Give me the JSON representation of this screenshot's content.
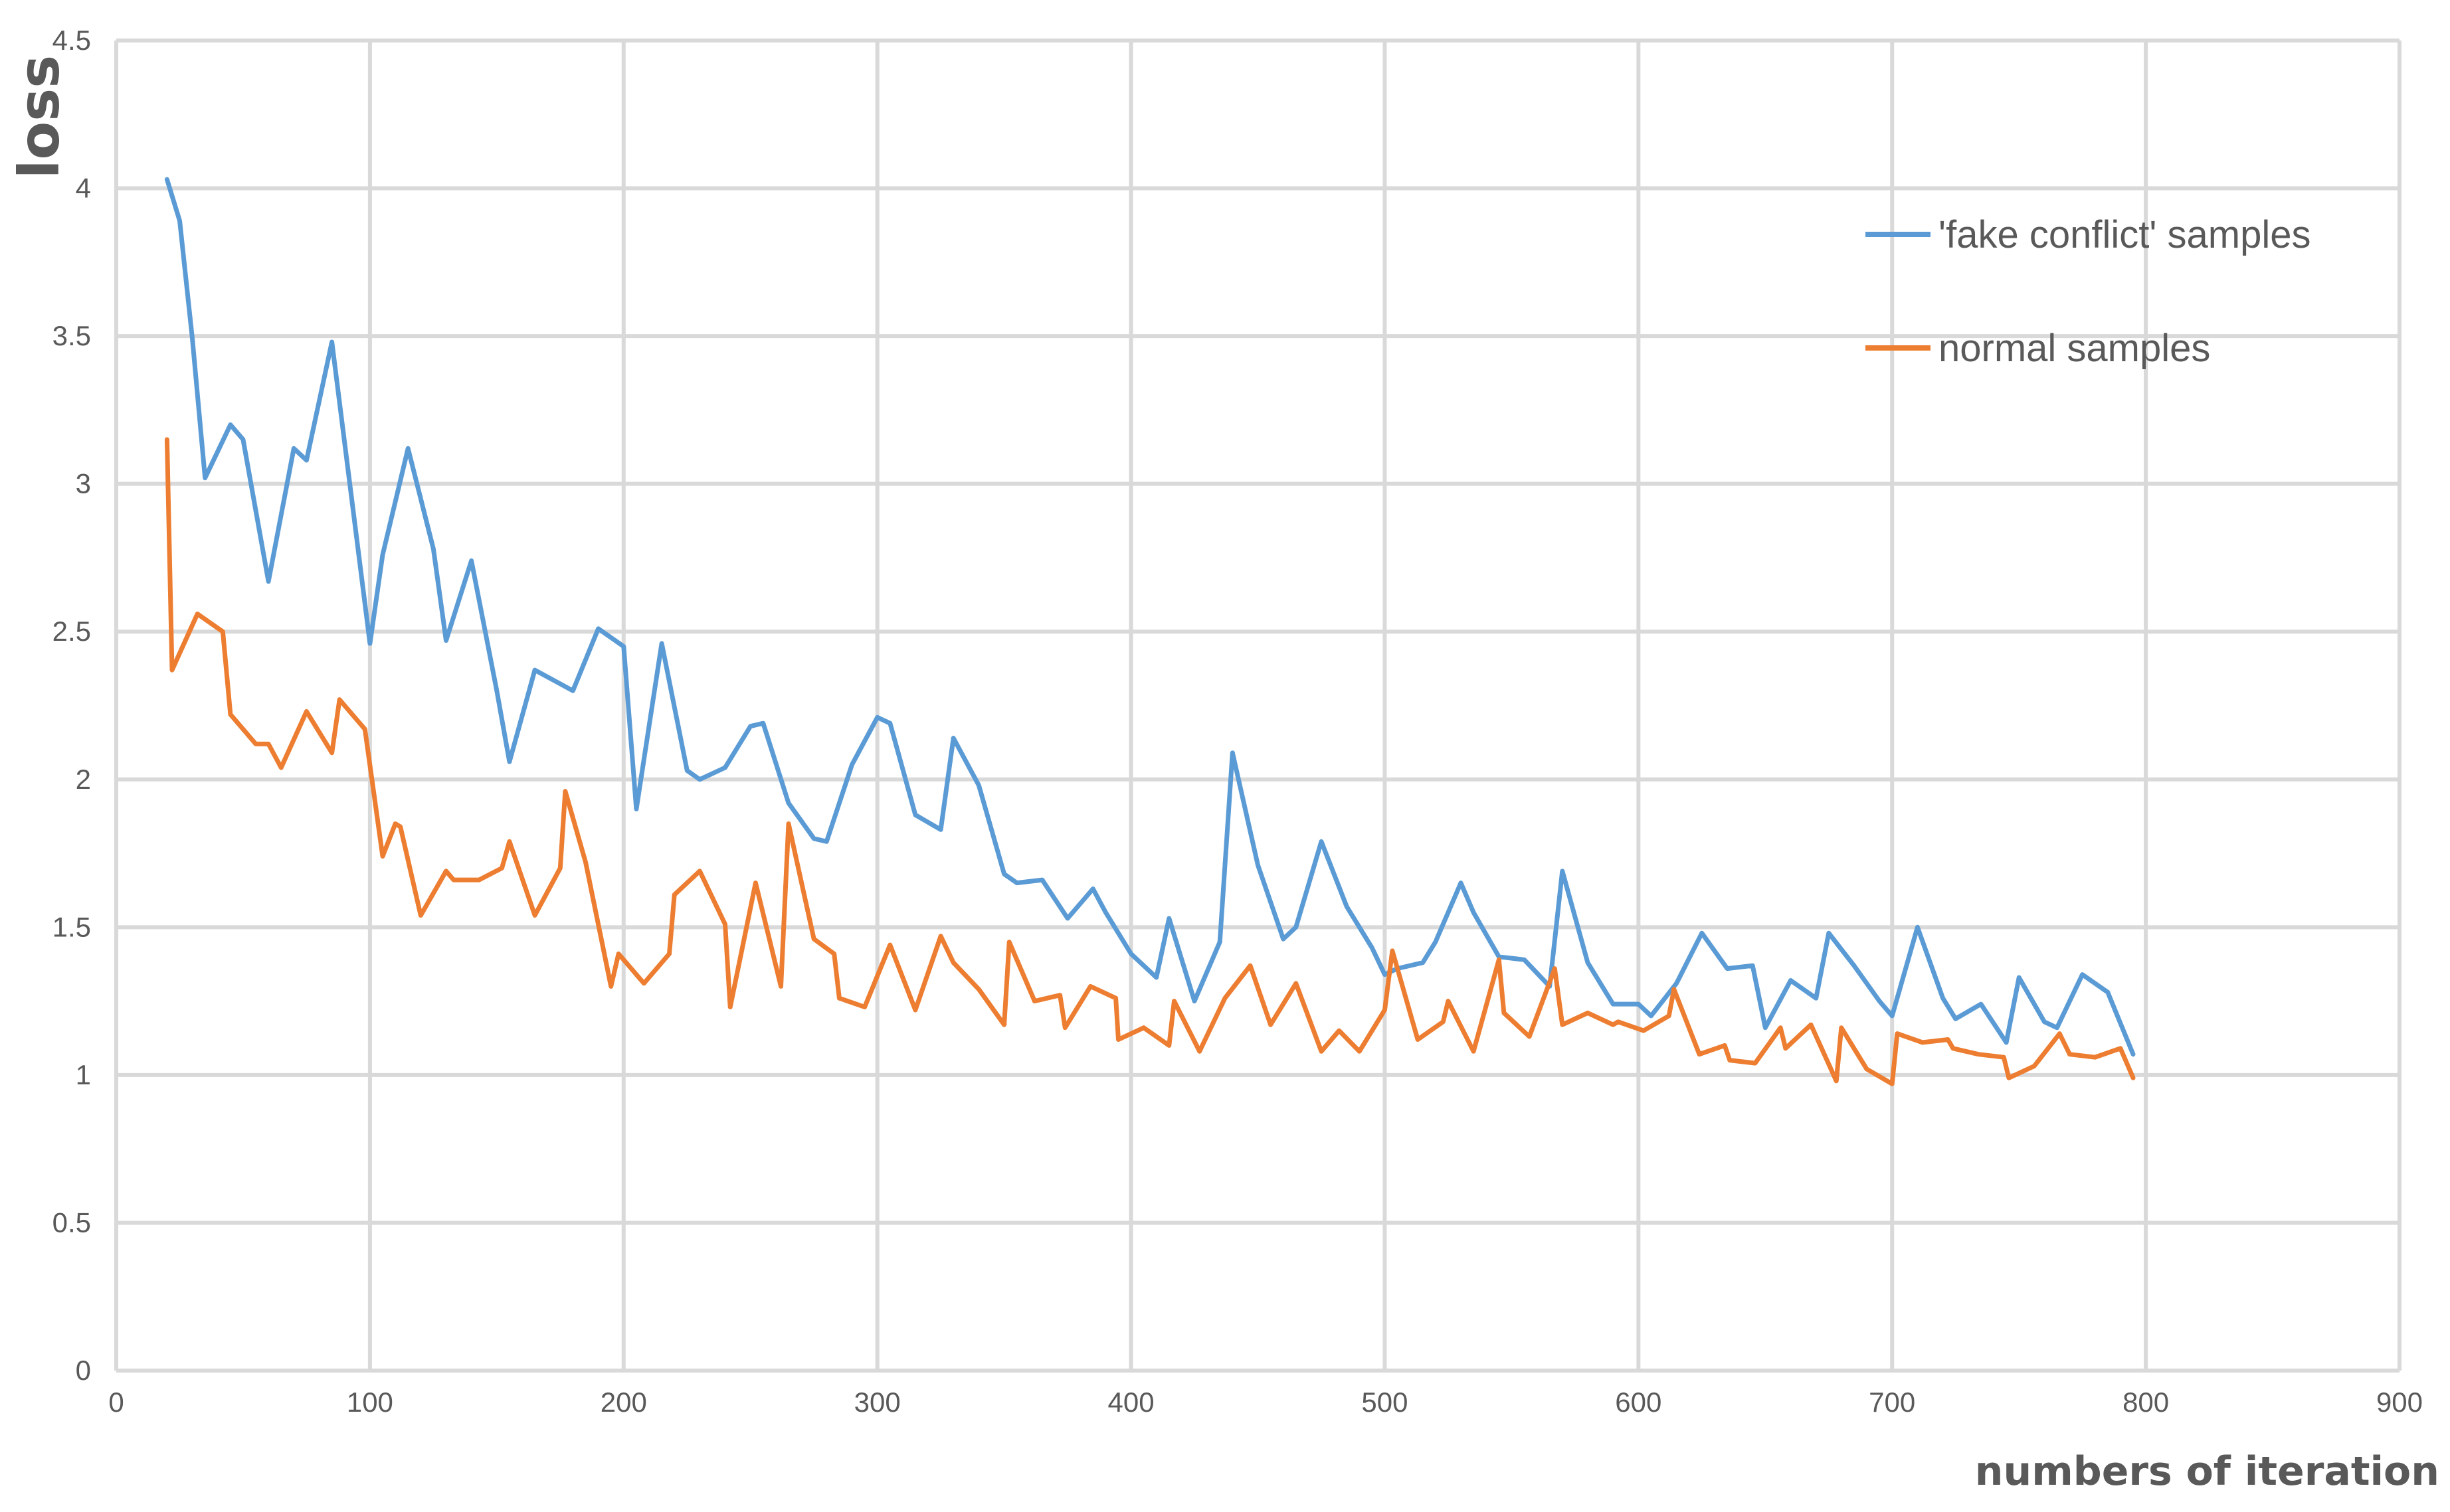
{
  "chart_data": {
    "type": "line",
    "title": "",
    "xlabel": "numbers of iteration",
    "ylabel": "loss",
    "xlim": [
      0,
      900
    ],
    "ylim": [
      0,
      4.5
    ],
    "x_ticks": [
      "0",
      "100",
      "200",
      "300",
      "400",
      "500",
      "600",
      "700",
      "800",
      "900"
    ],
    "y_ticks": [
      "0",
      "0.5",
      "1",
      "1.5",
      "2",
      "2.5",
      "3",
      "3.5",
      "4",
      "4.5"
    ],
    "grid": true,
    "legend_position": "top-right",
    "series": [
      {
        "name": "'fake conflict' samples",
        "color": "#5b9bd5",
        "x": [
          20,
          25,
          30,
          35,
          45,
          50,
          60,
          70,
          75,
          85,
          100,
          105,
          115,
          125,
          130,
          140,
          150,
          155,
          165,
          180,
          190,
          200,
          205,
          215,
          225,
          230,
          240,
          250,
          255,
          265,
          275,
          280,
          290,
          300,
          305,
          315,
          325,
          330,
          340,
          350,
          355,
          365,
          375,
          385,
          390,
          400,
          410,
          415,
          425,
          435,
          440,
          450,
          460,
          465,
          475,
          485,
          495,
          500,
          505,
          515,
          520,
          530,
          535,
          545,
          555,
          565,
          570,
          580,
          590,
          600,
          605,
          615,
          625,
          635,
          645,
          650,
          660,
          670,
          675,
          685,
          695,
          700,
          710,
          720,
          725,
          735,
          745,
          750,
          760,
          765,
          775,
          785,
          795
        ],
        "y": [
          4.03,
          3.89,
          3.49,
          3.02,
          3.2,
          3.15,
          2.67,
          3.12,
          3.08,
          3.48,
          2.46,
          2.76,
          3.12,
          2.78,
          2.47,
          2.74,
          2.3,
          2.06,
          2.37,
          2.3,
          2.51,
          2.45,
          1.9,
          2.46,
          2.03,
          2.0,
          2.04,
          2.18,
          2.19,
          1.92,
          1.8,
          1.79,
          2.05,
          2.21,
          2.19,
          1.88,
          1.83,
          2.14,
          1.98,
          1.68,
          1.65,
          1.66,
          1.53,
          1.63,
          1.55,
          1.41,
          1.33,
          1.53,
          1.25,
          1.45,
          2.09,
          1.71,
          1.46,
          1.5,
          1.79,
          1.57,
          1.43,
          1.34,
          1.36,
          1.38,
          1.45,
          1.65,
          1.55,
          1.4,
          1.39,
          1.3,
          1.69,
          1.38,
          1.24,
          1.24,
          1.2,
          1.31,
          1.48,
          1.36,
          1.37,
          1.16,
          1.32,
          1.26,
          1.48,
          1.37,
          1.25,
          1.2,
          1.5,
          1.26,
          1.19,
          1.24,
          1.11,
          1.33,
          1.18,
          1.16,
          1.34,
          1.28,
          1.07
        ]
      },
      {
        "name": "normal samples",
        "color": "#ed7d31",
        "x": [
          20,
          22,
          32,
          42,
          45,
          55,
          60,
          65,
          75,
          85,
          88,
          98,
          105,
          110,
          112,
          120,
          130,
          133,
          143,
          152,
          155,
          165,
          175,
          177,
          185,
          195,
          198,
          208,
          218,
          220,
          230,
          240,
          242,
          252,
          262,
          265,
          275,
          283,
          285,
          295,
          305,
          315,
          325,
          330,
          340,
          350,
          352,
          362,
          372,
          374,
          384,
          394,
          395,
          405,
          415,
          417,
          427,
          437,
          447,
          455,
          465,
          475,
          482,
          490,
          500,
          503,
          513,
          523,
          525,
          535,
          545,
          547,
          557,
          567,
          570,
          580,
          590,
          592,
          602,
          612,
          614,
          624,
          634,
          636,
          646,
          656,
          658,
          668,
          678,
          680,
          690,
          700,
          702,
          712,
          722,
          724,
          734,
          744,
          746,
          756,
          766,
          770,
          780,
          790,
          795
        ],
        "y": [
          3.15,
          2.37,
          2.56,
          2.5,
          2.22,
          2.12,
          2.12,
          2.04,
          2.23,
          2.09,
          2.27,
          2.17,
          1.74,
          1.85,
          1.84,
          1.54,
          1.69,
          1.66,
          1.66,
          1.7,
          1.79,
          1.54,
          1.7,
          1.96,
          1.72,
          1.3,
          1.41,
          1.31,
          1.41,
          1.61,
          1.69,
          1.51,
          1.23,
          1.65,
          1.3,
          1.85,
          1.46,
          1.41,
          1.26,
          1.23,
          1.44,
          1.22,
          1.47,
          1.38,
          1.29,
          1.17,
          1.45,
          1.25,
          1.27,
          1.16,
          1.3,
          1.26,
          1.12,
          1.16,
          1.1,
          1.25,
          1.08,
          1.26,
          1.37,
          1.17,
          1.31,
          1.08,
          1.15,
          1.08,
          1.22,
          1.42,
          1.12,
          1.18,
          1.25,
          1.08,
          1.39,
          1.21,
          1.13,
          1.36,
          1.17,
          1.21,
          1.17,
          1.18,
          1.15,
          1.2,
          1.29,
          1.07,
          1.1,
          1.05,
          1.04,
          1.16,
          1.09,
          1.17,
          0.98,
          1.16,
          1.02,
          0.97,
          1.14,
          1.11,
          1.12,
          1.09,
          1.07,
          1.06,
          0.99,
          1.03,
          1.14,
          1.07,
          1.06,
          1.09,
          0.99
        ]
      }
    ]
  }
}
